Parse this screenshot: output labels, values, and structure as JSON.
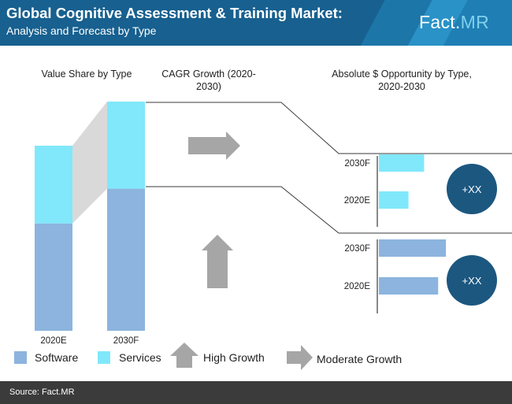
{
  "header": {
    "title": "Global Cognitive  Assessment & Training Market:",
    "subtitle": "Analysis and Forecast by Type",
    "brand": "Fact.",
    "brand_accent": "MR"
  },
  "titles": {
    "value_share": "Value Share by Type",
    "cagr": "CAGR Growth (2020-2030)",
    "absolute": "Absolute $ Opportunity by Type, 2020-2030"
  },
  "legend": {
    "software": "Software",
    "services": "Services",
    "high_growth": "High Growth",
    "moderate_growth": "Moderate Growth"
  },
  "circles": {
    "upper": "+XX",
    "lower": "+XX"
  },
  "footer": {
    "source": "Source: Fact.MR"
  },
  "colors": {
    "header": "#17608f",
    "software": "#8cb4de",
    "services": "#80e8fa",
    "arrow": "#a6a6a6",
    "circle": "#1c5780",
    "footer": "#3b3b3b"
  },
  "chart_data": [
    {
      "type": "bar",
      "stacked": true,
      "percent": true,
      "title": "Value Share by Type",
      "categories": [
        "2020E",
        "2030F"
      ],
      "series": [
        {
          "name": "Software",
          "values": [
            58,
            62
          ]
        },
        {
          "name": "Services",
          "values": [
            42,
            38
          ]
        }
      ],
      "ylim": [
        0,
        100
      ]
    },
    {
      "type": "bar",
      "orientation": "horizontal",
      "title": "Absolute $ Opportunity by Type, 2020-2030",
      "groups": [
        {
          "series": "Services",
          "categories": [
            "2030F",
            "2020E"
          ],
          "values": [
            58,
            38
          ]
        },
        {
          "series": "Software",
          "categories": [
            "2030F",
            "2020E"
          ],
          "values": [
            86,
            76
          ]
        }
      ],
      "xlim": [
        0,
        100
      ]
    }
  ]
}
